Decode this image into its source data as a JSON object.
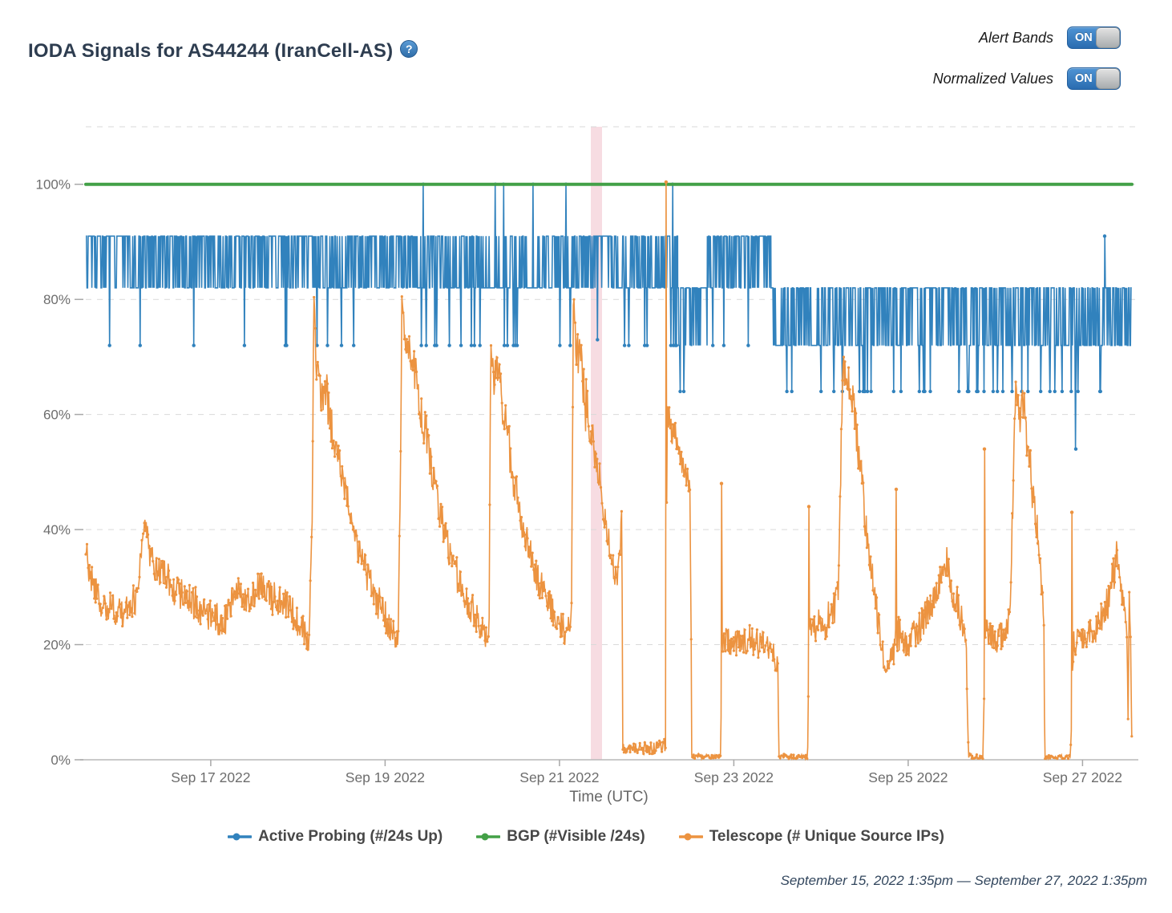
{
  "header": {
    "title": "IODA Signals for AS44244 (IranCell-AS)",
    "help_icon": "?",
    "toggles": [
      {
        "label": "Alert Bands",
        "state": "ON"
      },
      {
        "label": "Normalized Values",
        "state": "ON"
      }
    ]
  },
  "footer": {
    "date_range": "September 15, 2022 1:35pm — September 27, 2022 1:35pm"
  },
  "chart_data": {
    "type": "line",
    "title": "",
    "xlabel": "Time (UTC)",
    "ylabel": "",
    "x_unit": "days since 2022-09-15 13:35 UTC",
    "x_range_days": [
      0,
      12
    ],
    "ylim": [
      0,
      110
    ],
    "grid": "horizontal-dashed",
    "legend_position": "bottom",
    "sample_step": 0.007,
    "seed": 1337,
    "y_ticks": [
      {
        "v": 0,
        "label": "0%"
      },
      {
        "v": 20,
        "label": "20%"
      },
      {
        "v": 40,
        "label": "40%"
      },
      {
        "v": 60,
        "label": "60%"
      },
      {
        "v": 80,
        "label": "80%"
      },
      {
        "v": 100,
        "label": "100%"
      }
    ],
    "y_gridlines": [
      20,
      40,
      60,
      80,
      100,
      110
    ],
    "x_ticks": [
      {
        "t": 1.434,
        "label": "Sep 17 2022"
      },
      {
        "t": 3.434,
        "label": "Sep 19 2022"
      },
      {
        "t": 5.434,
        "label": "Sep 21 2022"
      },
      {
        "t": 7.434,
        "label": "Sep 23 2022"
      },
      {
        "t": 9.434,
        "label": "Sep 25 2022"
      },
      {
        "t": 11.434,
        "label": "Sep 27 2022"
      }
    ],
    "alert_bands": [
      {
        "t0": 5.793,
        "t1": 5.922,
        "color": "#e9a4b2",
        "opacity": 0.38
      }
    ],
    "colors": {
      "grid": "#d9d9d9",
      "axis": "#b9b9b9",
      "tick": "#a8a8a8",
      "tick_label": "#6d6d6d",
      "axis_label": "#666666"
    },
    "series": [
      {
        "name": "Active Probing (#/24s Up)",
        "color": "#3182bd",
        "style": "comb",
        "segments": [
          {
            "t0": 0.0,
            "t1": 3.8,
            "base": 82,
            "top": 91,
            "dip": 72,
            "p_top": 0.55,
            "p_dip": 0.022
          },
          {
            "t0": 3.8,
            "t1": 5.68,
            "base": 82,
            "top": 91,
            "dip": 72,
            "p_top": 0.4,
            "p_dip": 0.05
          },
          {
            "t0": 5.68,
            "t1": 6.11,
            "base": 82,
            "top": 91,
            "dip": 73,
            "p_top": 0.65,
            "p_dip": 0.028
          },
          {
            "t0": 6.11,
            "t1": 6.79,
            "base": 82,
            "top": 91,
            "dip": 72,
            "p_top": 0.33,
            "p_dip": 0.055
          },
          {
            "t0": 6.79,
            "t1": 7.13,
            "base": 72,
            "top": 82,
            "dip": 64,
            "p_top": 0.5,
            "p_dip": 0.03
          },
          {
            "t0": 7.13,
            "t1": 7.86,
            "base": 82,
            "top": 91,
            "dip": 72,
            "p_top": 0.6,
            "p_dip": 0.022
          },
          {
            "t0": 7.86,
            "t1": 12.0,
            "base": 72,
            "top": 82,
            "dip": 64,
            "p_top": 0.5,
            "p_dip": 0.06
          }
        ],
        "spikes": [
          {
            "t": 3.871,
            "v": 100
          },
          {
            "t": 4.699,
            "v": 100
          },
          {
            "t": 4.791,
            "v": 100
          },
          {
            "t": 5.131,
            "v": 100
          },
          {
            "t": 5.508,
            "v": 100
          },
          {
            "t": 6.731,
            "v": 100
          },
          {
            "t": 11.356,
            "v": 54
          },
          {
            "t": 11.687,
            "v": 91
          }
        ]
      },
      {
        "name": "BGP (#Visible /24s)",
        "color": "#43a047",
        "style": "constant",
        "value": 100
      },
      {
        "name": "Telescope (# Unique Source IPs)",
        "color": "#ec9340",
        "style": "noisy-line",
        "anchors": [
          [
            0,
            37,
            3
          ],
          [
            0.06,
            31,
            3
          ],
          [
            0.2,
            27,
            3
          ],
          [
            0.45,
            26,
            3
          ],
          [
            0.58,
            28,
            3
          ],
          [
            0.64,
            38,
            2.5
          ],
          [
            0.68,
            42,
            2.5
          ],
          [
            0.74,
            35,
            3
          ],
          [
            0.85,
            33,
            3
          ],
          [
            1.0,
            30,
            3
          ],
          [
            1.2,
            28,
            3
          ],
          [
            1.4,
            25,
            3
          ],
          [
            1.6,
            24,
            3
          ],
          [
            1.72,
            30,
            2.5
          ],
          [
            1.85,
            28,
            2.5
          ],
          [
            2.0,
            30,
            3
          ],
          [
            2.15,
            28,
            3
          ],
          [
            2.3,
            27,
            3
          ],
          [
            2.45,
            24,
            3
          ],
          [
            2.56,
            20,
            2
          ],
          [
            2.6,
            45,
            2
          ],
          [
            2.615,
            79,
            3
          ],
          [
            2.65,
            68,
            4
          ],
          [
            2.7,
            62,
            4
          ],
          [
            2.75,
            65,
            4
          ],
          [
            2.82,
            58,
            4
          ],
          [
            2.9,
            52,
            3
          ],
          [
            3.0,
            45,
            3
          ],
          [
            3.1,
            38,
            3
          ],
          [
            3.2,
            33,
            3
          ],
          [
            3.3,
            29,
            3
          ],
          [
            3.4,
            26,
            3
          ],
          [
            3.5,
            23,
            2.5
          ],
          [
            3.58,
            20,
            2
          ],
          [
            3.61,
            50,
            2
          ],
          [
            3.625,
            79,
            2
          ],
          [
            3.66,
            73,
            3
          ],
          [
            3.72,
            71,
            3
          ],
          [
            3.8,
            65,
            4
          ],
          [
            3.9,
            57,
            4
          ],
          [
            4.0,
            48,
            3
          ],
          [
            4.1,
            40,
            3
          ],
          [
            4.2,
            35,
            3
          ],
          [
            4.3,
            30,
            3
          ],
          [
            4.4,
            27,
            3
          ],
          [
            4.5,
            24,
            2.5
          ],
          [
            4.6,
            21,
            2
          ],
          [
            4.625,
            20,
            1.5
          ],
          [
            4.645,
            74,
            2
          ],
          [
            4.68,
            66,
            3
          ],
          [
            4.73,
            68,
            3
          ],
          [
            4.8,
            60,
            4
          ],
          [
            4.9,
            50,
            4
          ],
          [
            5.0,
            42,
            3
          ],
          [
            5.1,
            36,
            3
          ],
          [
            5.2,
            31,
            3
          ],
          [
            5.3,
            28,
            3
          ],
          [
            5.4,
            25,
            3
          ],
          [
            5.5,
            22,
            2.5
          ],
          [
            5.57,
            24,
            2
          ],
          [
            5.595,
            84,
            1.5
          ],
          [
            5.62,
            72,
            4
          ],
          [
            5.68,
            68,
            5
          ],
          [
            5.75,
            60,
            5
          ],
          [
            5.82,
            55,
            4
          ],
          [
            5.88,
            50,
            3
          ],
          [
            5.95,
            43,
            3
          ],
          [
            6.0,
            38,
            2.5
          ],
          [
            6.05,
            33,
            2.5
          ],
          [
            6.09,
            30,
            2.5
          ],
          [
            6.12,
            34,
            4
          ],
          [
            6.145,
            40,
            6
          ],
          [
            6.155,
            25,
            3
          ],
          [
            6.16,
            2,
            1
          ],
          [
            6.3,
            2,
            1
          ],
          [
            6.5,
            2,
            1
          ],
          [
            6.64,
            2.5,
            1.2
          ],
          [
            6.655,
            3,
            1
          ],
          [
            6.668,
            62,
            3
          ],
          [
            6.72,
            58,
            3
          ],
          [
            6.8,
            55,
            3
          ],
          [
            6.88,
            50,
            2.5
          ],
          [
            6.93,
            47,
            2
          ],
          [
            6.945,
            20,
            1
          ],
          [
            6.95,
            0.6,
            0.5
          ],
          [
            7.1,
            0.5,
            0.4
          ],
          [
            7.28,
            0.5,
            0.4
          ],
          [
            7.3,
            21,
            2.5
          ],
          [
            7.45,
            20,
            2.5
          ],
          [
            7.6,
            21,
            2.5
          ],
          [
            7.75,
            20,
            2.5
          ],
          [
            7.9,
            18,
            2.5
          ],
          [
            7.94,
            17,
            2
          ],
          [
            7.95,
            0.6,
            0.5
          ],
          [
            8.1,
            0.5,
            0.4
          ],
          [
            8.28,
            0.5,
            0.4
          ],
          [
            8.3,
            24,
            3
          ],
          [
            8.45,
            23,
            3
          ],
          [
            8.58,
            26,
            3
          ],
          [
            8.63,
            30,
            3
          ],
          [
            8.66,
            50,
            3
          ],
          [
            8.685,
            71,
            2
          ],
          [
            8.72,
            64,
            4
          ],
          [
            8.78,
            66,
            4
          ],
          [
            8.85,
            55,
            4
          ],
          [
            8.92,
            45,
            4
          ],
          [
            9.0,
            34,
            3
          ],
          [
            9.06,
            27,
            3
          ],
          [
            9.12,
            22,
            3
          ],
          [
            9.17,
            15,
            2
          ],
          [
            9.25,
            18,
            2.5
          ],
          [
            9.32,
            22,
            3
          ],
          [
            9.45,
            20,
            3
          ],
          [
            9.6,
            24,
            3
          ],
          [
            9.72,
            28,
            3
          ],
          [
            9.82,
            32,
            3.5
          ],
          [
            9.87,
            34,
            3.5
          ],
          [
            9.93,
            30,
            3
          ],
          [
            10.0,
            27,
            3
          ],
          [
            10.05,
            24,
            2.5
          ],
          [
            10.1,
            20,
            2.5
          ],
          [
            10.115,
            8,
            1.5
          ],
          [
            10.125,
            0.6,
            0.5
          ],
          [
            10.29,
            0.5,
            0.4
          ],
          [
            10.32,
            22,
            2.5
          ],
          [
            10.45,
            21,
            2.5
          ],
          [
            10.56,
            22,
            2.5
          ],
          [
            10.6,
            26,
            2.5
          ],
          [
            10.64,
            48,
            3
          ],
          [
            10.665,
            65,
            2
          ],
          [
            10.7,
            60,
            4
          ],
          [
            10.75,
            62,
            4
          ],
          [
            10.82,
            52,
            4
          ],
          [
            10.88,
            45,
            4
          ],
          [
            10.93,
            38,
            3
          ],
          [
            10.97,
            30,
            3
          ],
          [
            10.99,
            24,
            2
          ],
          [
            11.0,
            0.6,
            0.5
          ],
          [
            11.15,
            0.5,
            0.4
          ],
          [
            11.295,
            0.5,
            0.4
          ],
          [
            11.33,
            20,
            2.5
          ],
          [
            11.45,
            21,
            2.5
          ],
          [
            11.6,
            23,
            2.5
          ],
          [
            11.7,
            26,
            3
          ],
          [
            11.78,
            31,
            3.5
          ],
          [
            11.83,
            36,
            3.5
          ],
          [
            11.87,
            32,
            3
          ],
          [
            11.91,
            26,
            3
          ],
          [
            11.945,
            22,
            2
          ],
          [
            11.955,
            7,
            1.5
          ],
          [
            11.97,
            28,
            2
          ],
          [
            11.985,
            22,
            2
          ],
          [
            12.0,
            1,
            0.5
          ]
        ],
        "spikes": [
          [
            6.657,
            100.4
          ],
          [
            7.292,
            48
          ],
          [
            8.294,
            44
          ],
          [
            9.297,
            47
          ],
          [
            10.308,
            54
          ],
          [
            11.311,
            43
          ]
        ]
      }
    ]
  }
}
